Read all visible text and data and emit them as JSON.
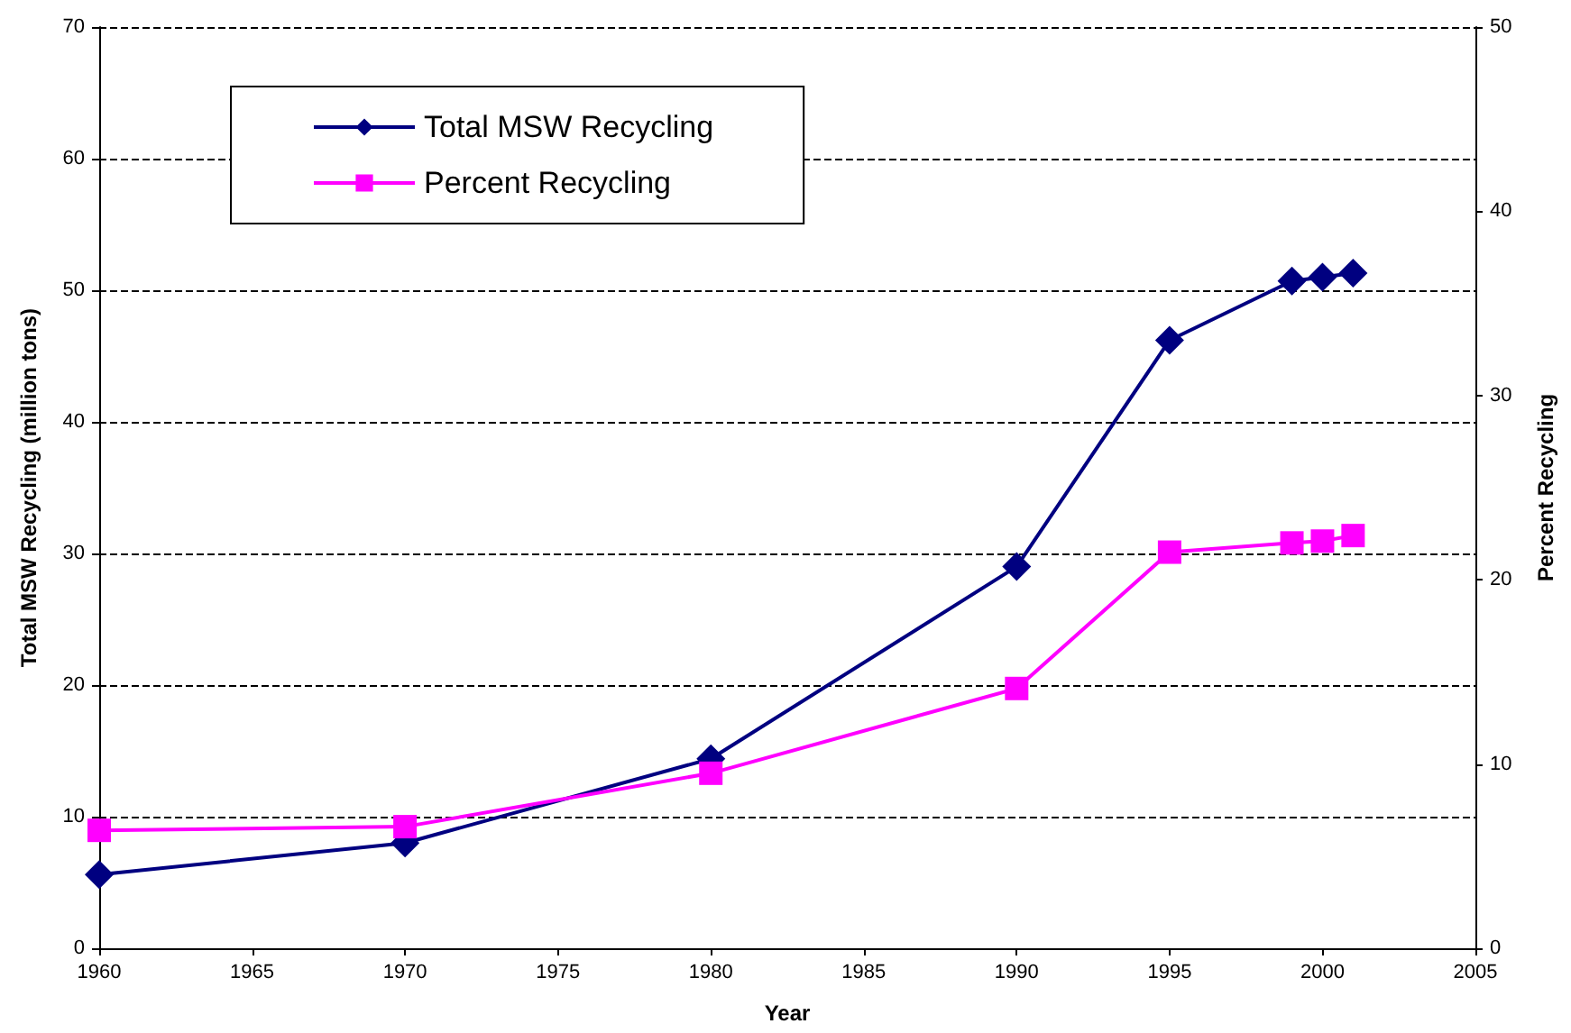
{
  "chart_data": {
    "type": "line",
    "xlabel": "Year",
    "ylabel": "Total MSW Recycling (million tons)",
    "y2label": "Percent Recycling",
    "x": [
      1960,
      1970,
      1980,
      1990,
      1995,
      1999,
      2000,
      2001
    ],
    "series": [
      {
        "name": "Total MSW Recycling",
        "color": "#000080",
        "marker": "diamond",
        "values": [
          5.6,
          8.0,
          14.4,
          29.0,
          46.2,
          50.7,
          51.0,
          51.3
        ]
      },
      {
        "name": "Percent Recycling",
        "color": "#ff00ff",
        "marker": "square",
        "axis": "y2",
        "values": [
          6.4,
          6.6,
          9.5,
          14.1,
          21.5,
          22.0,
          22.1,
          22.4
        ]
      }
    ],
    "xlim": [
      1960,
      2005
    ],
    "xticks": [
      1960,
      1965,
      1970,
      1975,
      1980,
      1985,
      1990,
      1995,
      2000,
      2005
    ],
    "ylim": [
      0,
      70
    ],
    "yticks": [
      0,
      10,
      20,
      30,
      40,
      50,
      60,
      70
    ],
    "y2lim": [
      0,
      50
    ],
    "y2ticks": [
      0,
      10,
      20,
      30,
      40,
      50
    ],
    "grid": "y",
    "legend": "top left",
    "line_style": "solid"
  }
}
